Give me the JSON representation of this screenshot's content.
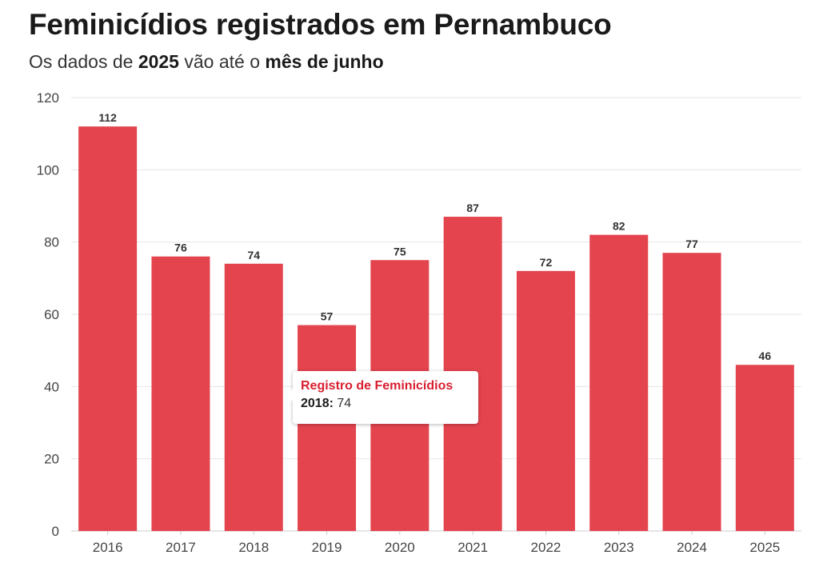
{
  "header": {
    "title": "Feminicídios registrados em Pernambuco",
    "subtitle_prefix": "Os dados de ",
    "subtitle_year": "2025",
    "subtitle_middle": " vão até o ",
    "subtitle_month": "mês de junho"
  },
  "colors": {
    "bar": "#e4444e",
    "grid": "#e6e6e6",
    "axis_text": "#444444",
    "label_text": "#333333",
    "tooltip_title": "#d81f2f"
  },
  "tooltip": {
    "title": "Registro de Feminicídios",
    "category": "2018:",
    "value": "74"
  },
  "chart_data": {
    "type": "bar",
    "categories": [
      "2016",
      "2017",
      "2018",
      "2019",
      "2020",
      "2021",
      "2022",
      "2023",
      "2024",
      "2025"
    ],
    "series": [
      {
        "name": "Registro de Feminicídios",
        "values": [
          112,
          76,
          74,
          57,
          75,
          87,
          72,
          82,
          77,
          46
        ]
      }
    ],
    "ylim": [
      0,
      120
    ],
    "yticks": [
      0,
      20,
      40,
      60,
      80,
      100,
      120
    ],
    "xlabel": "",
    "ylabel": "",
    "grid": true,
    "data_labels": true
  }
}
